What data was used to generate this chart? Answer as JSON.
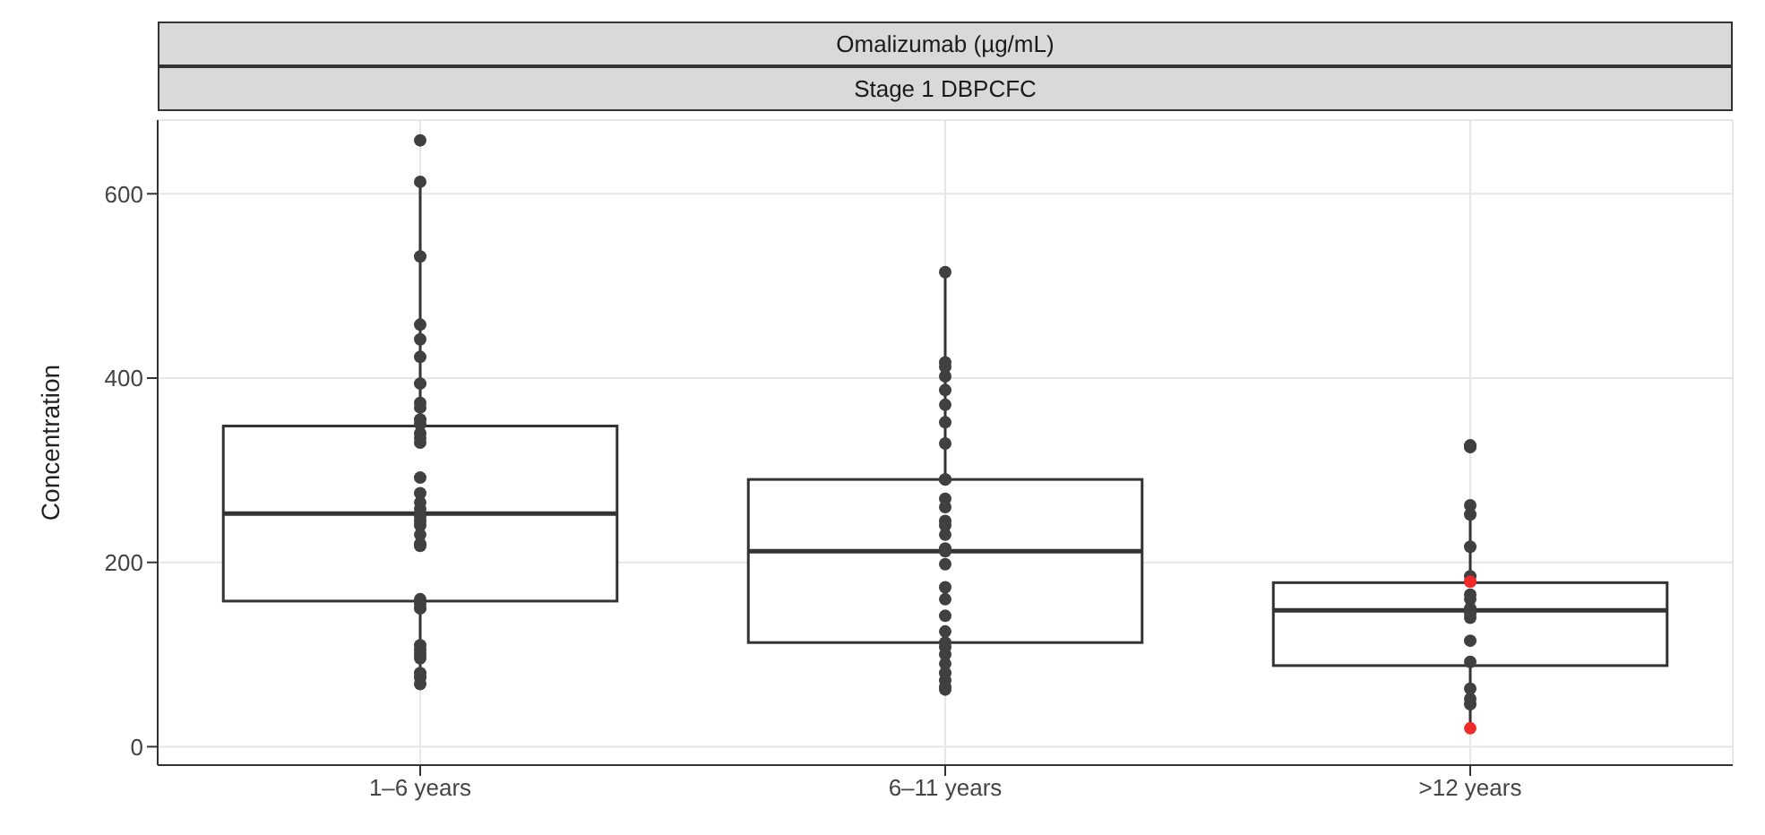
{
  "chart_data": {
    "type": "box",
    "title": "Omalizumab (µg/mL)",
    "subtitle": "Stage 1 DBPCFC",
    "ylabel": "Concentration",
    "categories": [
      "1–6 years",
      "6–11 years",
      ">12 years"
    ],
    "boxes": [
      {
        "low": 68,
        "q1": 158,
        "median": 253,
        "q3": 348,
        "high": 610
      },
      {
        "low": 62,
        "q1": 113,
        "median": 212,
        "q3": 290,
        "high": 515
      },
      {
        "low": 20,
        "q1": 88,
        "median": 148,
        "q3": 178,
        "high": 255
      }
    ],
    "series": [
      {
        "type": "scatter",
        "color": "#404040",
        "x": [
          "1–6 years",
          "1–6 years",
          "1–6 years",
          "1–6 years",
          "1–6 years",
          "1–6 years",
          "1–6 years",
          "1–6 years",
          "1–6 years",
          "1–6 years",
          "1–6 years",
          "1–6 years",
          "1–6 years",
          "1–6 years",
          "1–6 years",
          "1–6 years",
          "1–6 years",
          "1–6 years",
          "1–6 years",
          "1–6 years",
          "1–6 years",
          "1–6 years",
          "1–6 years",
          "1–6 years",
          "1–6 years",
          "1–6 years",
          "1–6 years",
          "1–6 years",
          "1–6 years",
          "1–6 years",
          "1–6 years",
          "1–6 years",
          "1–6 years",
          "1–6 years",
          "6–11 years",
          "6–11 years",
          "6–11 years",
          "6–11 years",
          "6–11 years",
          "6–11 years",
          "6–11 years",
          "6–11 years",
          "6–11 years",
          "6–11 years",
          "6–11 years",
          "6–11 years",
          "6–11 years",
          "6–11 years",
          "6–11 years",
          "6–11 years",
          "6–11 years",
          "6–11 years",
          "6–11 years",
          "6–11 years",
          "6–11 years",
          "6–11 years",
          "6–11 years",
          "6–11 years",
          "6–11 years",
          "6–11 years",
          "6–11 years",
          "6–11 years",
          "6–11 years",
          "6–11 years",
          ">12 years",
          ">12 years",
          ">12 years",
          ">12 years",
          ">12 years",
          ">12 years",
          ">12 years",
          ">12 years",
          ">12 years",
          ">12 years",
          ">12 years",
          ">12 years",
          ">12 years",
          ">12 years",
          ">12 years",
          ">12 years"
        ],
        "values": [
          658,
          613,
          532,
          458,
          423,
          442,
          394,
          373,
          368,
          355,
          350,
          340,
          335,
          330,
          292,
          275,
          265,
          258,
          250,
          245,
          240,
          230,
          220,
          218,
          160,
          155,
          150,
          110,
          105,
          100,
          80,
          75,
          68,
          96,
          515,
          417,
          412,
          402,
          387,
          371,
          352,
          329,
          290,
          290,
          269,
          260,
          245,
          240,
          230,
          215,
          212,
          198,
          173,
          160,
          142,
          125,
          113,
          108,
          100,
          90,
          80,
          72,
          65,
          62,
          327,
          325,
          262,
          252,
          217,
          185,
          165,
          160,
          150,
          145,
          140,
          115,
          92,
          63,
          52,
          46
        ]
      },
      {
        "type": "scatter",
        "color": "#ee2a2a",
        "x": [
          ">12 years",
          ">12 years"
        ],
        "values": [
          179,
          20
        ]
      }
    ],
    "ylim": [
      -20,
      680
    ],
    "yticks": [
      0,
      200,
      400,
      600
    ],
    "grid": true,
    "marker": "circle"
  }
}
